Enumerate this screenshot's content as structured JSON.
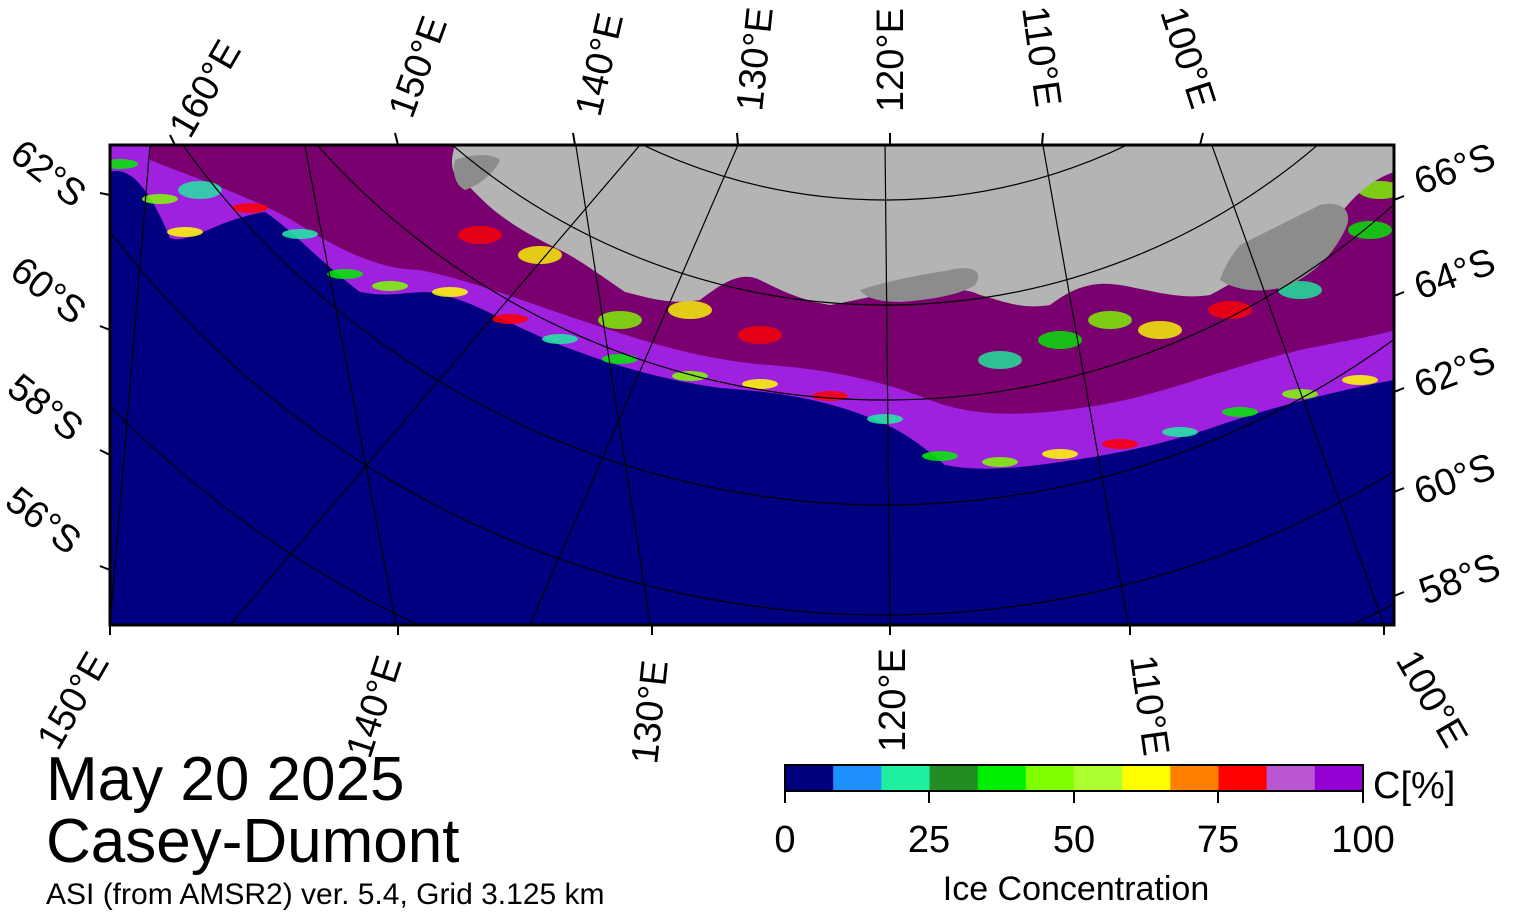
{
  "map": {
    "top_longitude_labels": [
      "160°E",
      "150°E",
      "140°E",
      "130°E",
      "120°E",
      "110°E",
      "100°E"
    ],
    "bottom_longitude_labels": [
      "150°E",
      "140°E",
      "130°E",
      "120°E",
      "110°E",
      "100°E"
    ],
    "left_latitude_labels": [
      "62°S",
      "60°S",
      "58°S",
      "56°S"
    ],
    "right_latitude_labels": [
      "66°S",
      "64°S",
      "62°S",
      "60°S",
      "58°S"
    ],
    "colors": {
      "ocean": "#000080",
      "land": "#b4b4b4",
      "land_dark": "#8c8c8c",
      "ice_high": "#7a0070",
      "ice_mid": "#a020e0",
      "frame": "#000000"
    }
  },
  "footer": {
    "date": "May 20 2025",
    "region": "Casey-Dumont",
    "source": "ASI (from AMSR2) ver. 5.4,  Grid 3.125 km"
  },
  "colorbar": {
    "unit_label": "C[%]",
    "title": "Ice Concentration",
    "ticks": [
      "0",
      "25",
      "50",
      "75",
      "100"
    ],
    "colors": [
      "#00007f",
      "#1e8fff",
      "#1ef0a0",
      "#238c23",
      "#00ee00",
      "#7fff00",
      "#adff2f",
      "#ffff00",
      "#ff7f00",
      "#ff0000",
      "#ba55d3",
      "#9400d3"
    ]
  }
}
